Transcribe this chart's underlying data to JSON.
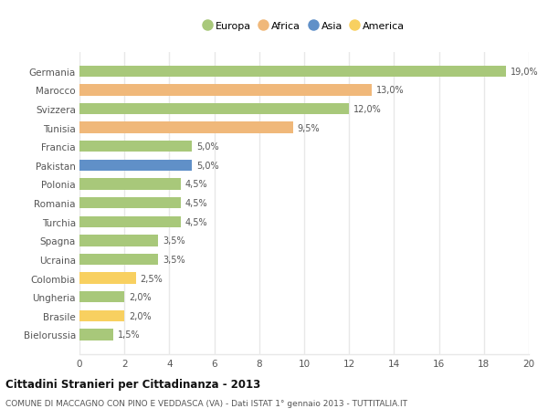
{
  "countries": [
    "Germania",
    "Marocco",
    "Svizzera",
    "Tunisia",
    "Francia",
    "Pakistan",
    "Polonia",
    "Romania",
    "Turchia",
    "Spagna",
    "Ucraina",
    "Colombia",
    "Ungheria",
    "Brasile",
    "Bielorussia"
  ],
  "values": [
    19.0,
    13.0,
    12.0,
    9.5,
    5.0,
    5.0,
    4.5,
    4.5,
    4.5,
    3.5,
    3.5,
    2.5,
    2.0,
    2.0,
    1.5
  ],
  "continents": [
    "Europa",
    "Africa",
    "Europa",
    "Africa",
    "Europa",
    "Asia",
    "Europa",
    "Europa",
    "Europa",
    "Europa",
    "Europa",
    "America",
    "Europa",
    "America",
    "Europa"
  ],
  "colors": {
    "Europa": "#a8c87a",
    "Africa": "#f0b87a",
    "Asia": "#6090c8",
    "America": "#f8d060"
  },
  "legend_order": [
    "Europa",
    "Africa",
    "Asia",
    "America"
  ],
  "xlim": [
    0,
    20
  ],
  "xticks": [
    0,
    2,
    4,
    6,
    8,
    10,
    12,
    14,
    16,
    18,
    20
  ],
  "title": "Cittadini Stranieri per Cittadinanza - 2013",
  "subtitle": "COMUNE DI MACCAGNO CON PINO E VEDDASCA (VA) - Dati ISTAT 1° gennaio 2013 - TUTTITALIA.IT",
  "background_color": "#ffffff",
  "bar_height": 0.6,
  "grid_color": "#e8e8e8",
  "text_color": "#555555",
  "title_color": "#111111"
}
